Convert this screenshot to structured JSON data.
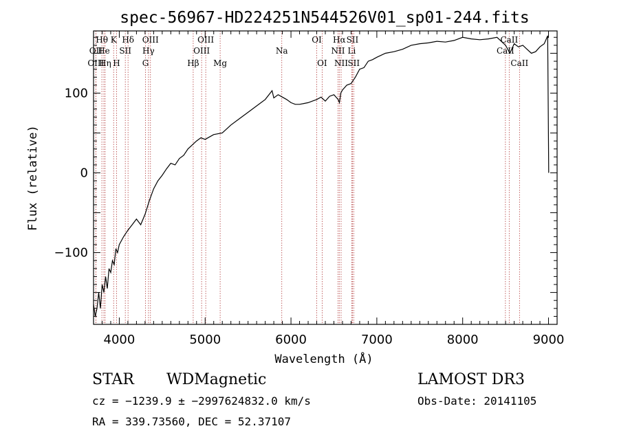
{
  "chart_data": {
    "type": "line",
    "title": "spec-56967-HD224251N544526V01_sp01-244.fits",
    "xlabel": "Wavelength (Å)",
    "ylabel": "Flux (relative)",
    "xlim": [
      3700,
      9100
    ],
    "ylim": [
      -190,
      178
    ],
    "xticks": [
      {
        "value": 4000,
        "label": "4000"
      },
      {
        "value": 5000,
        "label": "5000"
      },
      {
        "value": 6000,
        "label": "6000"
      },
      {
        "value": 7000,
        "label": "7000"
      },
      {
        "value": 8000,
        "label": "8000"
      },
      {
        "value": 9000,
        "label": "9000"
      }
    ],
    "yticks": [
      {
        "value": -100,
        "label": "−100"
      },
      {
        "value": 0,
        "label": "0"
      },
      {
        "value": 100,
        "label": "100"
      }
    ],
    "series": [
      {
        "color": "#000000",
        "x": [
          3700,
          3720,
          3740,
          3760,
          3780,
          3800,
          3820,
          3840,
          3860,
          3880,
          3900,
          3920,
          3940,
          3960,
          3980,
          4000,
          4050,
          4100,
          4150,
          4200,
          4250,
          4300,
          4350,
          4400,
          4450,
          4500,
          4550,
          4600,
          4650,
          4700,
          4750,
          4800,
          4850,
          4900,
          4950,
          5000,
          5050,
          5100,
          5200,
          5300,
          5400,
          5500,
          5600,
          5700,
          5780,
          5800,
          5850,
          5900,
          5950,
          6000,
          6050,
          6100,
          6150,
          6200,
          6250,
          6300,
          6350,
          6400,
          6450,
          6500,
          6550,
          6564,
          6580,
          6600,
          6650,
          6700,
          6750,
          6800,
          6850,
          6900,
          6950,
          7000,
          7100,
          7200,
          7300,
          7400,
          7500,
          7600,
          7700,
          7800,
          7900,
          8000,
          8100,
          8200,
          8300,
          8400,
          8500,
          8550,
          8600,
          8650,
          8700,
          8750,
          8800,
          8850,
          8900,
          8950,
          8990,
          9000,
          9002
        ],
        "y": [
          -165,
          -180,
          -170,
          -150,
          -170,
          -140,
          -150,
          -130,
          -145,
          -120,
          -125,
          -110,
          -115,
          -95,
          -100,
          -90,
          -80,
          -72,
          -65,
          -58,
          -65,
          -52,
          -35,
          -20,
          -10,
          -3,
          5,
          12,
          10,
          18,
          22,
          30,
          35,
          40,
          44,
          42,
          45,
          48,
          50,
          60,
          68,
          76,
          84,
          92,
          103,
          94,
          98,
          95,
          92,
          88,
          86,
          86,
          87,
          88,
          90,
          92,
          95,
          90,
          96,
          98,
          92,
          88,
          100,
          104,
          110,
          112,
          120,
          130,
          132,
          140,
          142,
          145,
          150,
          152,
          155,
          160,
          162,
          163,
          165,
          164,
          166,
          170,
          168,
          167,
          168,
          170,
          160,
          150,
          162,
          158,
          160,
          155,
          150,
          152,
          158,
          162,
          172,
          36,
          0
        ]
      }
    ],
    "spectral_lines": [
      {
        "label": "Hθ",
        "wavelength": 3797,
        "row": 1
      },
      {
        "label": "OII",
        "wavelength": 3727,
        "row": 2
      },
      {
        "label": "OIII",
        "wavelength": 3727,
        "row": 3
      },
      {
        "label": "He",
        "wavelength": 3820,
        "row": 2
      },
      {
        "label": "Hη",
        "wavelength": 3835,
        "row": 3
      },
      {
        "label": "K",
        "wavelength": 3934,
        "row": 1
      },
      {
        "label": "H",
        "wavelength": 3968,
        "row": 3
      },
      {
        "label": "SII",
        "wavelength": 4070,
        "row": 2
      },
      {
        "label": "Hδ",
        "wavelength": 4102,
        "row": 1
      },
      {
        "label": "OIII",
        "wavelength": 4363,
        "row": 1
      },
      {
        "label": "Hγ",
        "wavelength": 4340,
        "row": 2
      },
      {
        "label": "G",
        "wavelength": 4305,
        "row": 3
      },
      {
        "label": "Hβ",
        "wavelength": 4861,
        "row": 3
      },
      {
        "label": "OIII",
        "wavelength": 5007,
        "row": 1
      },
      {
        "label": "OIII",
        "wavelength": 4959,
        "row": 2
      },
      {
        "label": "Mg",
        "wavelength": 5175,
        "row": 3
      },
      {
        "label": "Na",
        "wavelength": 5893,
        "row": 2
      },
      {
        "label": "OI",
        "wavelength": 6300,
        "row": 1
      },
      {
        "label": "OI",
        "wavelength": 6363,
        "row": 3
      },
      {
        "label": "Hα",
        "wavelength": 6563,
        "row": 1
      },
      {
        "label": "NII",
        "wavelength": 6548,
        "row": 2
      },
      {
        "label": "NII",
        "wavelength": 6584,
        "row": 3
      },
      {
        "label": "SII",
        "wavelength": 6716,
        "row": 1
      },
      {
        "label": "Li",
        "wavelength": 6708,
        "row": 2
      },
      {
        "label": "SII",
        "wavelength": 6731,
        "row": 3
      },
      {
        "label": "CaII",
        "wavelength": 8542,
        "row": 1
      },
      {
        "label": "CaII",
        "wavelength": 8498,
        "row": 2
      },
      {
        "label": "CaII",
        "wavelength": 8662,
        "row": 3
      }
    ]
  },
  "info": {
    "class_label": "STAR",
    "subclass": "WDMagnetic",
    "survey": "LAMOST DR3",
    "cz_line": "cz = −1239.9 ± −2997624832.0 km/s",
    "obs_date": "Obs-Date: 20141105",
    "coords": "RA = 339.73560, DEC =  52.37107"
  }
}
